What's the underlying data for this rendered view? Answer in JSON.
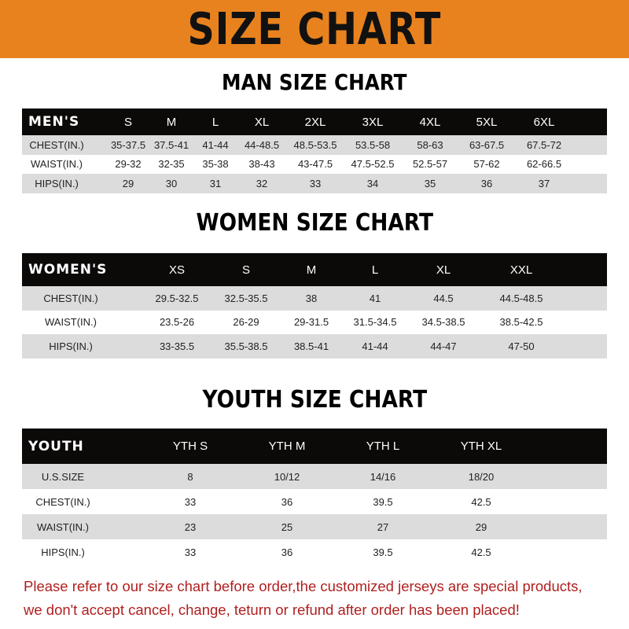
{
  "banner": "SIZE CHART",
  "men": {
    "title": "MAN SIZE CHART",
    "header": [
      "MEN'S",
      "S",
      "M",
      "L",
      "XL",
      "2XL",
      "3XL",
      "4XL",
      "5XL",
      "6XL"
    ],
    "rows": [
      [
        "CHEST(IN.)",
        "35-37.5",
        "37.5-41",
        "41-44",
        "44-48.5",
        "48.5-53.5",
        "53.5-58",
        "58-63",
        "63-67.5",
        "67.5-72"
      ],
      [
        "WAIST(IN.)",
        "29-32",
        "32-35",
        "35-38",
        "38-43",
        "43-47.5",
        "47.5-52.5",
        "52.5-57",
        "57-62",
        "62-66.5"
      ],
      [
        "HIPS(IN.)",
        "29",
        "30",
        "31",
        "32",
        "33",
        "34",
        "35",
        "36",
        "37"
      ]
    ]
  },
  "women": {
    "title": "WOMEN SIZE CHART",
    "header": [
      "WOMEN'S",
      "XS",
      "S",
      "M",
      "L",
      "XL",
      "XXL"
    ],
    "rows": [
      [
        "CHEST(IN.)",
        "29.5-32.5",
        "32.5-35.5",
        "38",
        "41",
        "44.5",
        "44.5-48.5"
      ],
      [
        "WAIST(IN.)",
        "23.5-26",
        "26-29",
        "29-31.5",
        "31.5-34.5",
        "34.5-38.5",
        "38.5-42.5"
      ],
      [
        "HIPS(IN.)",
        "33-35.5",
        "35.5-38.5",
        "38.5-41",
        "41-44",
        "44-47",
        "47-50"
      ]
    ]
  },
  "youth": {
    "title": "YOUTH SIZE CHART",
    "header": [
      "YOUTH",
      "YTH S",
      "YTH M",
      "YTH L",
      "YTH XL"
    ],
    "rows": [
      [
        "U.S.SIZE",
        "8",
        "10/12",
        "14/16",
        "18/20"
      ],
      [
        "CHEST(IN.)",
        "33",
        "36",
        "39.5",
        "42.5"
      ],
      [
        "WAIST(IN.)",
        "23",
        "25",
        "27",
        "29"
      ],
      [
        "HIPS(IN.)",
        "33",
        "36",
        "39.5",
        "42.5"
      ]
    ]
  },
  "note": [
    "Please refer to our size chart before order,the customized jerseys are special products,",
    "we don't accept cancel, change, teturn or refund after order has been placed!"
  ],
  "colors": {
    "banner": "#e8821e",
    "header_row": "#0c0a09",
    "stripe": "#dcdcdc",
    "note": "#b01f1f"
  }
}
